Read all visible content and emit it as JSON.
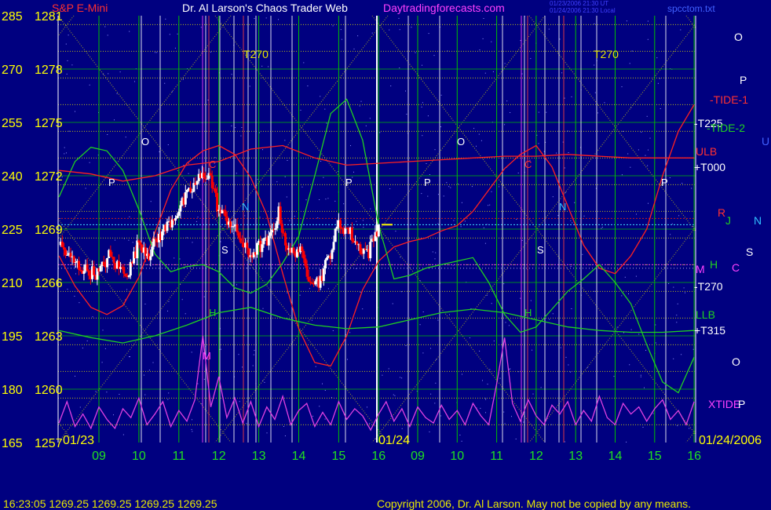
{
  "header": {
    "instrument": "S&P E-Mini",
    "title": "Dr. Al Larson's Chaos Trader Web",
    "site": "Daytradingforecasts.com",
    "stamp_line1": "01/23/2006 21:30 UT",
    "stamp_line2": "01/24/2006 21:30 Local",
    "filename": "spcctom.txt"
  },
  "footer": {
    "quote": "16:23:05  1269.25  1269.25  1269.25  1269.25",
    "copyright": "Copyright 2006, Dr. Al Larson. May not be copied by any means."
  },
  "colors": {
    "background": "#000080",
    "price": "#ffffff",
    "price_down": "#ff0000",
    "tide1": "#ff2020",
    "tide2": "#20d020",
    "xtide": "#e040e0",
    "grid_yellow": "#e8e800",
    "grid_green": "#00c000"
  },
  "chart_data": {
    "type": "line",
    "left_axis_labels": [
      "285",
      "270",
      "255",
      "240",
      "225",
      "210",
      "195",
      "180",
      "165"
    ],
    "price_axis_labels": [
      "1281",
      "1278",
      "1275",
      "1272",
      "1269",
      "1266",
      "1263",
      "1260",
      "1257"
    ],
    "price_ylim": [
      1257,
      1281
    ],
    "time_ticks": [
      "09",
      "10",
      "11",
      "12",
      "13",
      "14",
      "15",
      "16",
      "09",
      "10",
      "11",
      "12",
      "13",
      "14",
      "15",
      "16"
    ],
    "date_labels": [
      "01/23",
      "01/24",
      "01/24/2006"
    ],
    "right_labels": [
      "O",
      "P",
      "-TIDE-1",
      "-T225",
      "-TIDE-2",
      "U",
      "ULB",
      "+T000",
      "R",
      "J",
      "N",
      "S",
      "H",
      "M",
      "C",
      "-T270",
      "LLB",
      "+T315",
      "O",
      "XTIDE",
      "P"
    ],
    "top_labels": [
      "T270",
      "T270"
    ],
    "series": [
      {
        "name": "",
        "color": "price",
        "x": [
          8.0,
          8.25,
          8.5,
          8.75,
          9.0,
          9.25,
          9.5,
          9.75,
          10.0,
          10.25,
          10.5,
          10.75,
          11.0,
          11.25,
          11.5,
          11.75,
          12.0,
          12.25,
          12.5,
          12.75,
          13.0,
          13.25,
          13.5,
          13.75,
          14.0,
          14.25,
          14.5,
          14.75,
          15.0,
          15.25,
          15.5,
          15.75,
          16.0
        ],
        "values": [
          1268.2,
          1267.4,
          1266.9,
          1266.6,
          1266.5,
          1267.5,
          1266.8,
          1266.6,
          1268.3,
          1267.6,
          1268.6,
          1269.3,
          1270.1,
          1271.0,
          1271.8,
          1272.2,
          1270.0,
          1269.5,
          1268.6,
          1267.5,
          1268.0,
          1268.3,
          1269.9,
          1267.6,
          1267.9,
          1266.4,
          1266.0,
          1267.4,
          1269.3,
          1268.9,
          1268.0,
          1267.7,
          1269.25
        ]
      },
      {
        "name": "TIDE-1",
        "color": "tide1",
        "x": [
          8.0,
          8.4,
          8.8,
          9.2,
          9.6,
          10.0,
          10.4,
          10.8,
          11.2,
          11.6,
          12.0,
          12.4,
          12.8,
          13.2,
          13.6,
          14.0,
          14.4,
          14.8,
          15.2,
          15.6,
          16.0,
          16.4,
          16.8,
          17.2,
          17.6,
          18.0,
          18.4,
          18.8,
          19.2,
          19.6,
          20.0,
          20.4,
          20.8,
          21.2,
          21.6,
          22.0,
          22.4,
          22.8,
          23.2,
          23.6,
          24.0
        ],
        "values": [
          1267.5,
          1265.8,
          1264.6,
          1264.2,
          1264.7,
          1266.3,
          1268.8,
          1271.2,
          1272.7,
          1273.4,
          1273.7,
          1273.2,
          1271.9,
          1269.8,
          1266.5,
          1263.4,
          1261.5,
          1261.3,
          1263.0,
          1265.6,
          1267.2,
          1268.0,
          1268.3,
          1268.5,
          1268.9,
          1269.2,
          1270.0,
          1271.2,
          1272.4,
          1273.2,
          1273.7,
          1272.5,
          1270.3,
          1268.1,
          1266.8,
          1266.5,
          1267.5,
          1269.0,
          1272.0,
          1274.5,
          1276.0
        ]
      },
      {
        "name": "TIDE-2",
        "color": "tide2",
        "x": [
          8.0,
          8.4,
          8.8,
          9.2,
          9.6,
          10.0,
          10.4,
          10.8,
          11.2,
          11.6,
          12.0,
          12.4,
          12.8,
          13.2,
          13.6,
          14.0,
          14.4,
          14.8,
          15.2,
          15.6,
          16.0,
          16.4,
          16.8,
          17.2,
          17.6,
          18.0,
          18.4,
          18.8,
          19.2,
          19.6,
          20.0,
          20.4,
          20.8,
          21.2,
          21.6,
          22.0,
          22.4,
          22.8,
          23.2,
          23.6,
          24.0
        ],
        "values": [
          1270.8,
          1272.8,
          1273.6,
          1273.4,
          1272.3,
          1270.1,
          1267.6,
          1266.6,
          1266.9,
          1267.0,
          1266.6,
          1265.7,
          1265.4,
          1265.9,
          1267.1,
          1268.6,
          1272.0,
          1275.5,
          1276.3,
          1274.0,
          1269.2,
          1266.2,
          1266.4,
          1266.8,
          1267.0,
          1267.2,
          1267.4,
          1266.0,
          1264.2,
          1263.2,
          1263.5,
          1264.5,
          1265.5,
          1266.2,
          1267.0,
          1266.0,
          1264.8,
          1262.5,
          1260.4,
          1259.8,
          1261.8
        ]
      },
      {
        "name": "LLB",
        "color": "tide2",
        "x": [
          8.0,
          8.8,
          9.6,
          10.4,
          11.2,
          12.0,
          12.8,
          13.6,
          14.4,
          15.2,
          16.0,
          16.8,
          17.6,
          18.4,
          19.2,
          20.0,
          20.8,
          21.6,
          22.4,
          23.2,
          24.0
        ],
        "values": [
          1263.3,
          1262.9,
          1262.6,
          1263.0,
          1263.6,
          1264.3,
          1264.6,
          1264.0,
          1263.6,
          1263.4,
          1263.5,
          1263.9,
          1264.3,
          1264.5,
          1264.3,
          1263.9,
          1263.5,
          1263.3,
          1263.2,
          1263.2,
          1263.3
        ]
      },
      {
        "name": "ULB",
        "color": "tide1",
        "x": [
          8.0,
          8.8,
          9.6,
          10.4,
          11.2,
          12.0,
          12.8,
          13.6,
          14.4,
          15.2,
          16.0,
          16.8,
          17.6,
          18.4,
          19.2,
          20.0,
          20.8,
          21.6,
          22.4,
          23.2,
          24.0
        ],
        "values": [
          1272.3,
          1272.1,
          1271.7,
          1272.0,
          1272.6,
          1272.8,
          1273.5,
          1273.7,
          1273.0,
          1272.6,
          1272.7,
          1272.8,
          1272.9,
          1273.0,
          1273.1,
          1273.1,
          1273.2,
          1273.1,
          1273.0,
          1273.0,
          1273.0
        ]
      },
      {
        "name": "XTIDE",
        "color": "xtide",
        "x": [
          8.0,
          8.2,
          8.4,
          8.6,
          8.8,
          9.0,
          9.2,
          9.4,
          9.6,
          9.8,
          10.0,
          10.2,
          10.4,
          10.6,
          10.8,
          11.0,
          11.2,
          11.4,
          11.6,
          11.8,
          12.0,
          12.2,
          12.4,
          12.6,
          12.8,
          13.0,
          13.2,
          13.4,
          13.6,
          13.8,
          14.0,
          14.2,
          14.4,
          14.6,
          14.8,
          15.0,
          15.2,
          15.4,
          15.6,
          15.8,
          16.0,
          16.2,
          16.4,
          16.6,
          16.8,
          17.0,
          17.2,
          17.4,
          17.6,
          17.8,
          18.0,
          18.2,
          18.4,
          18.6,
          18.8,
          19.0,
          19.2,
          19.4,
          19.6,
          19.8,
          20.0,
          20.2,
          20.4,
          20.6,
          20.8,
          21.0,
          21.2,
          21.4,
          21.6,
          21.8,
          22.0,
          22.2,
          22.4,
          22.6,
          22.8,
          23.0,
          23.2,
          23.4,
          23.6,
          23.8,
          24.0
        ],
        "values": [
          1258.1,
          1259.3,
          1257.9,
          1258.6,
          1257.8,
          1259.0,
          1258.3,
          1257.8,
          1258.9,
          1258.4,
          1259.5,
          1258.0,
          1258.6,
          1259.3,
          1257.9,
          1258.8,
          1258.2,
          1259.4,
          1263.0,
          1259.0,
          1260.7,
          1258.4,
          1259.5,
          1258.1,
          1259.3,
          1257.9,
          1259.0,
          1258.3,
          1259.6,
          1258.0,
          1258.8,
          1259.2,
          1257.9,
          1258.7,
          1258.0,
          1259.3,
          1258.3,
          1258.9,
          1258.5,
          1257.7,
          1258.6,
          1259.3,
          1258.2,
          1258.9,
          1257.9,
          1259.0,
          1258.4,
          1258.1,
          1259.1,
          1258.3,
          1258.8,
          1258.0,
          1259.2,
          1258.5,
          1258.0,
          1260.3,
          1262.9,
          1259.2,
          1258.2,
          1259.4,
          1258.5,
          1258.0,
          1259.1,
          1258.6,
          1259.3,
          1258.0,
          1258.8,
          1258.2,
          1259.6,
          1258.4,
          1258.0,
          1259.2,
          1258.6,
          1259.0,
          1258.2,
          1258.9,
          1259.4,
          1258.3,
          1258.8,
          1258.0,
          1259.3
        ]
      }
    ]
  }
}
